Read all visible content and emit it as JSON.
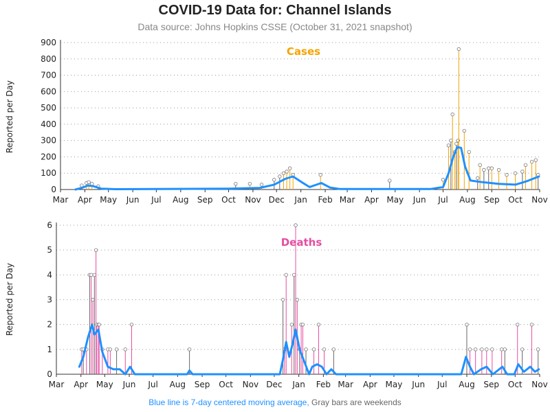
{
  "title": "COVID-19 Data for: Channel Islands",
  "subtitle": "Data source: Johns Hopkins CSSE (October 31, 2021 snapshot)",
  "footnote": {
    "blue_part": "Blue line is 7-day centered moving average,",
    "gray_part": "Gray bars are weekends"
  },
  "colors": {
    "cases": "#f5a300",
    "deaths": "#e64da0",
    "moving_average": "#1e90ff",
    "weekend": "#666666"
  },
  "chart_data": [
    {
      "type": "bar",
      "panel_title": "Cases",
      "ylabel": "Reported per Day",
      "x_ticks": [
        "Mar",
        "Apr",
        "May",
        "Jun",
        "Jul",
        "Aug",
        "Sep",
        "Oct",
        "Nov",
        "Dec",
        "Jan",
        "Feb",
        "Mar",
        "Apr",
        "May",
        "Jun",
        "Jul",
        "Aug",
        "Sep",
        "Oct",
        "Nov"
      ],
      "xlim": [
        "2020-03-01",
        "2021-11-01"
      ],
      "ylim": [
        0,
        900
      ],
      "y_ticks": [
        0,
        100,
        200,
        300,
        400,
        500,
        600,
        700,
        800,
        900
      ],
      "grid": "horizontal dotted",
      "spikes": [
        {
          "date": "2020-03-28",
          "value": 25
        },
        {
          "date": "2020-04-03",
          "value": 40
        },
        {
          "date": "2020-04-06",
          "value": 45
        },
        {
          "date": "2020-04-10",
          "value": 35
        },
        {
          "date": "2020-04-18",
          "value": 20
        },
        {
          "date": "2020-10-10",
          "value": 35
        },
        {
          "date": "2020-10-28",
          "value": 35
        },
        {
          "date": "2020-11-12",
          "value": 30
        },
        {
          "date": "2020-11-28",
          "value": 60
        },
        {
          "date": "2020-12-05",
          "value": 80
        },
        {
          "date": "2020-12-10",
          "value": 100
        },
        {
          "date": "2020-12-14",
          "value": 110
        },
        {
          "date": "2020-12-18",
          "value": 130
        },
        {
          "date": "2020-12-22",
          "value": 90
        },
        {
          "date": "2021-01-26",
          "value": 90
        },
        {
          "date": "2021-04-24",
          "value": 55
        },
        {
          "date": "2021-07-01",
          "value": 60
        },
        {
          "date": "2021-07-08",
          "value": 270
        },
        {
          "date": "2021-07-11",
          "value": 300
        },
        {
          "date": "2021-07-13",
          "value": 460
        },
        {
          "date": "2021-07-16",
          "value": 230
        },
        {
          "date": "2021-07-18",
          "value": 280
        },
        {
          "date": "2021-07-20",
          "value": 300
        },
        {
          "date": "2021-07-21",
          "value": 860
        },
        {
          "date": "2021-07-28",
          "value": 360
        },
        {
          "date": "2021-08-03",
          "value": 230
        },
        {
          "date": "2021-08-14",
          "value": 70
        },
        {
          "date": "2021-08-17",
          "value": 150
        },
        {
          "date": "2021-08-22",
          "value": 120
        },
        {
          "date": "2021-08-28",
          "value": 130
        },
        {
          "date": "2021-09-01",
          "value": 130
        },
        {
          "date": "2021-09-10",
          "value": 120
        },
        {
          "date": "2021-09-20",
          "value": 90
        },
        {
          "date": "2021-10-01",
          "value": 100
        },
        {
          "date": "2021-10-10",
          "value": 110
        },
        {
          "date": "2021-10-14",
          "value": 150
        },
        {
          "date": "2021-10-22",
          "value": 170
        },
        {
          "date": "2021-10-27",
          "value": 180
        },
        {
          "date": "2021-10-30",
          "value": 90
        }
      ],
      "moving_average": [
        {
          "date": "2020-03-20",
          "value": 0
        },
        {
          "date": "2020-03-28",
          "value": 10
        },
        {
          "date": "2020-04-05",
          "value": 25
        },
        {
          "date": "2020-04-12",
          "value": 20
        },
        {
          "date": "2020-04-22",
          "value": 5
        },
        {
          "date": "2020-05-10",
          "value": 2
        },
        {
          "date": "2020-10-01",
          "value": 5
        },
        {
          "date": "2020-11-10",
          "value": 10
        },
        {
          "date": "2020-11-28",
          "value": 30
        },
        {
          "date": "2020-12-12",
          "value": 65
        },
        {
          "date": "2020-12-22",
          "value": 80
        },
        {
          "date": "2021-01-02",
          "value": 45
        },
        {
          "date": "2021-01-12",
          "value": 15
        },
        {
          "date": "2021-01-27",
          "value": 40
        },
        {
          "date": "2021-02-07",
          "value": 12
        },
        {
          "date": "2021-02-20",
          "value": 3
        },
        {
          "date": "2021-06-15",
          "value": 3
        },
        {
          "date": "2021-07-01",
          "value": 15
        },
        {
          "date": "2021-07-08",
          "value": 100
        },
        {
          "date": "2021-07-14",
          "value": 200
        },
        {
          "date": "2021-07-19",
          "value": 260
        },
        {
          "date": "2021-07-24",
          "value": 255
        },
        {
          "date": "2021-07-29",
          "value": 140
        },
        {
          "date": "2021-08-05",
          "value": 55
        },
        {
          "date": "2021-08-20",
          "value": 45
        },
        {
          "date": "2021-09-10",
          "value": 35
        },
        {
          "date": "2021-10-01",
          "value": 30
        },
        {
          "date": "2021-10-15",
          "value": 50
        },
        {
          "date": "2021-10-31",
          "value": 80
        }
      ]
    },
    {
      "type": "bar",
      "panel_title": "Deaths",
      "ylabel": "Reported per Day",
      "x_ticks": [
        "Mar",
        "Apr",
        "May",
        "Jun",
        "Jul",
        "Aug",
        "Sep",
        "Oct",
        "Nov",
        "Dec",
        "Jan",
        "Feb",
        "Mar",
        "Apr",
        "May",
        "Jun",
        "Jul",
        "Aug",
        "Sep",
        "Oct",
        "Nov"
      ],
      "xlim": [
        "2020-03-01",
        "2021-11-01"
      ],
      "ylim": [
        0,
        6
      ],
      "y_ticks": [
        0,
        1,
        2,
        3,
        4,
        5,
        6
      ],
      "grid": "horizontal dotted",
      "spikes": [
        {
          "date": "2020-04-02",
          "value": 1
        },
        {
          "date": "2020-04-04",
          "value": 1
        },
        {
          "date": "2020-04-08",
          "value": 1
        },
        {
          "date": "2020-04-12",
          "value": 4
        },
        {
          "date": "2020-04-14",
          "value": 4
        },
        {
          "date": "2020-04-16",
          "value": 3
        },
        {
          "date": "2020-04-18",
          "value": 4
        },
        {
          "date": "2020-04-20",
          "value": 5
        },
        {
          "date": "2020-04-21",
          "value": 2
        },
        {
          "date": "2020-04-23",
          "value": 2
        },
        {
          "date": "2020-04-24",
          "value": 2
        },
        {
          "date": "2020-04-28",
          "value": 1
        },
        {
          "date": "2020-05-05",
          "value": 1
        },
        {
          "date": "2020-05-08",
          "value": 1
        },
        {
          "date": "2020-05-16",
          "value": 1
        },
        {
          "date": "2020-05-27",
          "value": 1
        },
        {
          "date": "2020-06-04",
          "value": 2
        },
        {
          "date": "2020-08-16",
          "value": 1
        },
        {
          "date": "2020-12-12",
          "value": 3
        },
        {
          "date": "2020-12-14",
          "value": 1
        },
        {
          "date": "2020-12-16",
          "value": 4
        },
        {
          "date": "2020-12-23",
          "value": 2
        },
        {
          "date": "2020-12-26",
          "value": 4
        },
        {
          "date": "2020-12-28",
          "value": 6
        },
        {
          "date": "2020-12-30",
          "value": 3
        },
        {
          "date": "2021-01-02",
          "value": 1
        },
        {
          "date": "2021-01-04",
          "value": 2
        },
        {
          "date": "2021-01-06",
          "value": 2
        },
        {
          "date": "2021-01-10",
          "value": 1
        },
        {
          "date": "2021-01-20",
          "value": 1
        },
        {
          "date": "2021-01-26",
          "value": 2
        },
        {
          "date": "2021-02-02",
          "value": 1
        },
        {
          "date": "2021-02-14",
          "value": 1
        },
        {
          "date": "2021-08-01",
          "value": 2
        },
        {
          "date": "2021-08-05",
          "value": 1
        },
        {
          "date": "2021-08-12",
          "value": 1
        },
        {
          "date": "2021-08-20",
          "value": 1
        },
        {
          "date": "2021-08-26",
          "value": 1
        },
        {
          "date": "2021-09-02",
          "value": 1
        },
        {
          "date": "2021-09-14",
          "value": 1
        },
        {
          "date": "2021-09-18",
          "value": 1
        },
        {
          "date": "2021-10-04",
          "value": 2
        },
        {
          "date": "2021-10-10",
          "value": 1
        },
        {
          "date": "2021-10-22",
          "value": 2
        },
        {
          "date": "2021-10-30",
          "value": 1
        }
      ],
      "moving_average": [
        {
          "date": "2020-03-30",
          "value": 0.3
        },
        {
          "date": "2020-04-04",
          "value": 0.7
        },
        {
          "date": "2020-04-10",
          "value": 1.5
        },
        {
          "date": "2020-04-15",
          "value": 2.0
        },
        {
          "date": "2020-04-18",
          "value": 1.6
        },
        {
          "date": "2020-04-23",
          "value": 1.8
        },
        {
          "date": "2020-04-28",
          "value": 0.9
        },
        {
          "date": "2020-05-05",
          "value": 0.3
        },
        {
          "date": "2020-05-12",
          "value": 0.2
        },
        {
          "date": "2020-05-20",
          "value": 0.2
        },
        {
          "date": "2020-05-27",
          "value": 0.0
        },
        {
          "date": "2020-06-02",
          "value": 0.3
        },
        {
          "date": "2020-06-08",
          "value": 0.0
        },
        {
          "date": "2020-08-13",
          "value": 0.0
        },
        {
          "date": "2020-08-16",
          "value": 0.15
        },
        {
          "date": "2020-08-20",
          "value": 0.0
        },
        {
          "date": "2020-12-08",
          "value": 0.0
        },
        {
          "date": "2020-12-12",
          "value": 0.6
        },
        {
          "date": "2020-12-16",
          "value": 1.3
        },
        {
          "date": "2020-12-20",
          "value": 0.7
        },
        {
          "date": "2020-12-24",
          "value": 1.2
        },
        {
          "date": "2020-12-28",
          "value": 1.8
        },
        {
          "date": "2021-01-02",
          "value": 1.0
        },
        {
          "date": "2021-01-08",
          "value": 0.5
        },
        {
          "date": "2021-01-14",
          "value": 0.0
        },
        {
          "date": "2021-01-18",
          "value": 0.3
        },
        {
          "date": "2021-01-24",
          "value": 0.4
        },
        {
          "date": "2021-01-30",
          "value": 0.3
        },
        {
          "date": "2021-02-05",
          "value": 0.0
        },
        {
          "date": "2021-02-11",
          "value": 0.2
        },
        {
          "date": "2021-02-17",
          "value": 0.0
        },
        {
          "date": "2021-07-25",
          "value": 0.0
        },
        {
          "date": "2021-07-31",
          "value": 0.7
        },
        {
          "date": "2021-08-05",
          "value": 0.3
        },
        {
          "date": "2021-08-10",
          "value": 0.0
        },
        {
          "date": "2021-08-19",
          "value": 0.2
        },
        {
          "date": "2021-08-26",
          "value": 0.3
        },
        {
          "date": "2021-09-03",
          "value": 0.0
        },
        {
          "date": "2021-09-15",
          "value": 0.3
        },
        {
          "date": "2021-09-21",
          "value": 0.0
        },
        {
          "date": "2021-09-30",
          "value": 0.0
        },
        {
          "date": "2021-10-05",
          "value": 0.4
        },
        {
          "date": "2021-10-12",
          "value": 0.1
        },
        {
          "date": "2021-10-20",
          "value": 0.3
        },
        {
          "date": "2021-10-26",
          "value": 0.1
        },
        {
          "date": "2021-10-31",
          "value": 0.2
        }
      ]
    }
  ]
}
